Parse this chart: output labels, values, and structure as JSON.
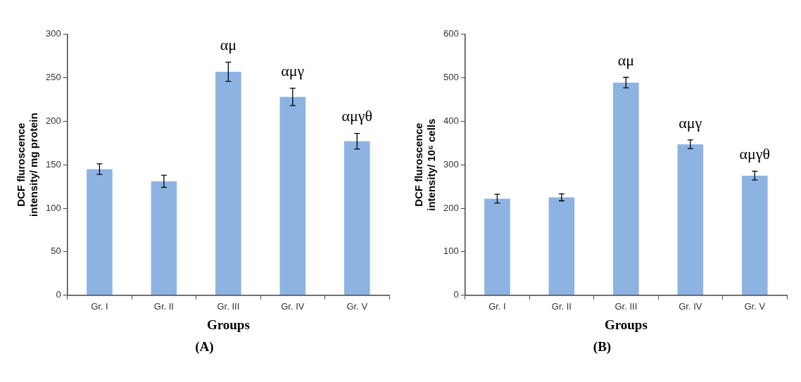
{
  "chart_data": [
    {
      "type": "bar",
      "xlabel": "Groups",
      "ylabel": "DCF fluroscence\nintensity/ mg protein",
      "categories": [
        "Gr. I",
        "Gr. II",
        "Gr. III",
        "Gr. IV",
        "Gr. V"
      ],
      "values": [
        145,
        131,
        257,
        228,
        177
      ],
      "errors": [
        6,
        7,
        11,
        10,
        9
      ],
      "color": "#8db3e2",
      "ylim": [
        0,
        300
      ],
      "yticks": [
        0,
        50,
        100,
        150,
        200,
        250,
        300
      ],
      "grid": false,
      "legend": false,
      "annotations": [
        {
          "text": "αμ",
          "x": "Gr. III",
          "y": 257
        },
        {
          "text": "αμγ",
          "x": "Gr. IV",
          "y": 228
        },
        {
          "text": "αμγθ",
          "x": "Gr. V",
          "y": 177
        },
        "(A)"
      ]
    },
    {
      "type": "bar",
      "xlabel": "Groups",
      "ylabel": "DCF fluroscence\nintensity/ 10⁶ cells",
      "categories": [
        "Gr. I",
        "Gr. II",
        "Gr. III",
        "Gr. IV",
        "Gr. V"
      ],
      "values": [
        222,
        225,
        489,
        347,
        275
      ],
      "errors": [
        10,
        8,
        12,
        10,
        10
      ],
      "color": "#8db3e2",
      "ylim": [
        0,
        600
      ],
      "yticks": [
        0,
        100,
        200,
        300,
        400,
        500,
        600
      ],
      "grid": false,
      "legend": false,
      "annotations": [
        {
          "text": "αμ",
          "x": "Gr. III",
          "y": 489
        },
        {
          "text": "αμγ",
          "x": "Gr. IV",
          "y": 347
        },
        {
          "text": "αμγθ",
          "x": "Gr. V",
          "y": 275
        },
        "(B)"
      ]
    }
  ]
}
